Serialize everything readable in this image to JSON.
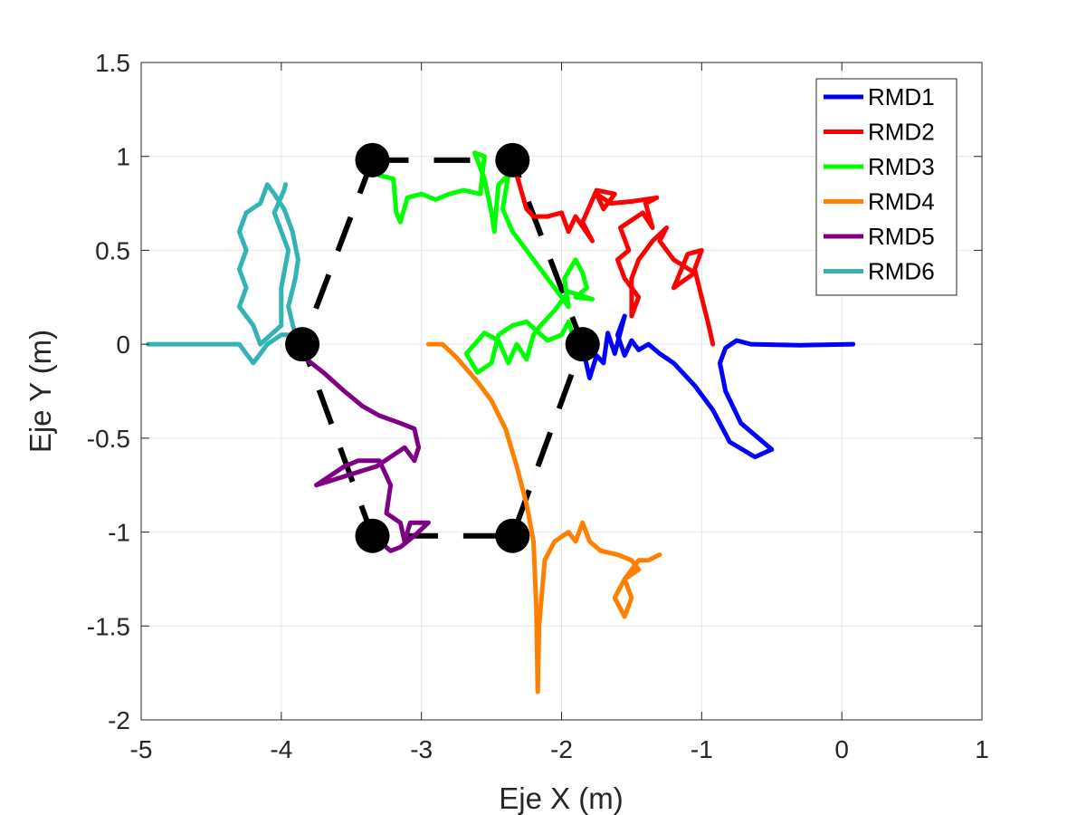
{
  "chart_data": {
    "type": "line",
    "title": "",
    "xlabel": "Eje X (m)",
    "ylabel": "Eje Y (m)",
    "xlim": [
      -5,
      1
    ],
    "ylim": [
      -2,
      1.5
    ],
    "xticks": [
      -5,
      -4,
      -3,
      -2,
      -1,
      0,
      1
    ],
    "yticks": [
      -2,
      -1.5,
      -1,
      -0.5,
      0,
      0.5,
      1,
      1.5
    ],
    "xtick_labels": [
      "-5",
      "-4",
      "-3",
      "-2",
      "-1",
      "0",
      "1"
    ],
    "ytick_labels": [
      "-2",
      "-1.5",
      "-1",
      "-0.5",
      "0",
      "0.5",
      "1",
      "1.5"
    ],
    "grid": true,
    "legend_position": "top-right",
    "formation": {
      "vertices": [
        [
          -3.35,
          0.98
        ],
        [
          -2.35,
          0.98
        ],
        [
          -1.85,
          0.0
        ],
        [
          -2.35,
          -1.02
        ],
        [
          -3.35,
          -1.02
        ],
        [
          -3.85,
          0.0
        ]
      ],
      "color": "#000000",
      "style": "dashed"
    },
    "series": [
      {
        "name": "RMD1",
        "color": "#0000ff",
        "points": [
          [
            0.08,
            0.0
          ],
          [
            -0.3,
            -0.005
          ],
          [
            -0.65,
            0.0
          ],
          [
            -0.75,
            0.02
          ],
          [
            -0.83,
            -0.02
          ],
          [
            -0.87,
            -0.1
          ],
          [
            -0.83,
            -0.25
          ],
          [
            -0.72,
            -0.42
          ],
          [
            -0.5,
            -0.56
          ],
          [
            -0.62,
            -0.6
          ],
          [
            -0.8,
            -0.52
          ],
          [
            -0.92,
            -0.35
          ],
          [
            -1.05,
            -0.22
          ],
          [
            -1.2,
            -0.1
          ],
          [
            -1.3,
            -0.05
          ],
          [
            -1.38,
            0.0
          ],
          [
            -1.45,
            -0.03
          ],
          [
            -1.5,
            0.02
          ],
          [
            -1.55,
            -0.06
          ],
          [
            -1.6,
            0.05
          ],
          [
            -1.55,
            0.15
          ],
          [
            -1.62,
            -0.05
          ],
          [
            -1.67,
            0.06
          ],
          [
            -1.7,
            -0.1
          ],
          [
            -1.75,
            -0.06
          ],
          [
            -1.8,
            -0.18
          ],
          [
            -1.83,
            -0.08
          ],
          [
            -1.85,
            0.0
          ]
        ]
      },
      {
        "name": "RMD2",
        "color": "#ff0000",
        "points": [
          [
            -0.92,
            0.0
          ],
          [
            -0.95,
            0.1
          ],
          [
            -1.0,
            0.25
          ],
          [
            -1.05,
            0.4
          ],
          [
            -1.0,
            0.5
          ],
          [
            -1.1,
            0.48
          ],
          [
            -1.2,
            0.3
          ],
          [
            -1.05,
            0.38
          ],
          [
            -1.2,
            0.45
          ],
          [
            -1.3,
            0.55
          ],
          [
            -1.25,
            0.62
          ],
          [
            -1.35,
            0.55
          ],
          [
            -1.45,
            0.45
          ],
          [
            -1.5,
            0.35
          ],
          [
            -1.5,
            0.15
          ],
          [
            -1.45,
            0.25
          ],
          [
            -1.55,
            0.35
          ],
          [
            -1.6,
            0.45
          ],
          [
            -1.52,
            0.5
          ],
          [
            -1.58,
            0.62
          ],
          [
            -1.42,
            0.7
          ],
          [
            -1.35,
            0.62
          ],
          [
            -1.4,
            0.75
          ],
          [
            -1.32,
            0.78
          ],
          [
            -1.5,
            0.76
          ],
          [
            -1.65,
            0.75
          ],
          [
            -1.75,
            0.8
          ],
          [
            -1.7,
            0.72
          ],
          [
            -1.62,
            0.8
          ],
          [
            -1.75,
            0.82
          ],
          [
            -1.85,
            0.65
          ],
          [
            -1.78,
            0.55
          ],
          [
            -1.9,
            0.68
          ],
          [
            -1.95,
            0.6
          ],
          [
            -2.0,
            0.7
          ],
          [
            -2.1,
            0.68
          ],
          [
            -2.2,
            0.68
          ],
          [
            -2.25,
            0.72
          ],
          [
            -2.3,
            0.85
          ],
          [
            -2.35,
            0.98
          ]
        ]
      },
      {
        "name": "RMD3",
        "color": "#00ff00",
        "points": [
          [
            -3.3,
            0.9
          ],
          [
            -3.2,
            0.88
          ],
          [
            -3.18,
            0.7
          ],
          [
            -3.15,
            0.65
          ],
          [
            -3.1,
            0.78
          ],
          [
            -3.0,
            0.8
          ],
          [
            -2.9,
            0.77
          ],
          [
            -2.8,
            0.8
          ],
          [
            -2.7,
            0.82
          ],
          [
            -2.58,
            0.8
          ],
          [
            -2.55,
            1.0
          ],
          [
            -2.62,
            1.02
          ],
          [
            -2.55,
            0.88
          ],
          [
            -2.5,
            0.7
          ],
          [
            -2.48,
            0.6
          ],
          [
            -2.45,
            0.85
          ],
          [
            -2.38,
            0.9
          ],
          [
            -2.42,
            0.72
          ],
          [
            -2.35,
            0.6
          ],
          [
            -2.25,
            0.5
          ],
          [
            -2.15,
            0.4
          ],
          [
            -2.05,
            0.3
          ],
          [
            -1.95,
            0.2
          ],
          [
            -1.98,
            0.35
          ],
          [
            -1.9,
            0.45
          ],
          [
            -1.85,
            0.38
          ],
          [
            -1.82,
            0.3
          ],
          [
            -1.9,
            0.25
          ],
          [
            -1.78,
            0.24
          ],
          [
            -1.95,
            0.28
          ],
          [
            -2.05,
            0.18
          ],
          [
            -2.15,
            0.1
          ],
          [
            -2.2,
            0.05
          ],
          [
            -2.25,
            -0.08
          ],
          [
            -2.32,
            0.0
          ],
          [
            -2.38,
            -0.1
          ],
          [
            -2.45,
            0.02
          ],
          [
            -2.55,
            0.06
          ],
          [
            -2.62,
            0.0
          ],
          [
            -2.68,
            -0.05
          ],
          [
            -2.6,
            -0.15
          ],
          [
            -2.5,
            -0.1
          ],
          [
            -2.45,
            0.05
          ],
          [
            -2.35,
            0.1
          ],
          [
            -2.25,
            0.12
          ],
          [
            -2.1,
            0.02
          ],
          [
            -2.0,
            0.05
          ],
          [
            -1.95,
            0.12
          ],
          [
            -1.9,
            0.0
          ],
          [
            -1.85,
            0.0
          ]
        ]
      },
      {
        "name": "RMD4",
        "color": "#ff8000",
        "points": [
          [
            -2.95,
            0.0
          ],
          [
            -2.85,
            0.0
          ],
          [
            -2.75,
            -0.07
          ],
          [
            -2.6,
            -0.2
          ],
          [
            -2.5,
            -0.3
          ],
          [
            -2.4,
            -0.45
          ],
          [
            -2.32,
            -0.65
          ],
          [
            -2.25,
            -0.85
          ],
          [
            -2.2,
            -1.05
          ],
          [
            -2.18,
            -1.4
          ],
          [
            -2.17,
            -1.85
          ],
          [
            -2.16,
            -1.5
          ],
          [
            -2.12,
            -1.15
          ],
          [
            -2.05,
            -1.05
          ],
          [
            -1.95,
            -1.0
          ],
          [
            -1.9,
            -1.05
          ],
          [
            -1.85,
            -0.95
          ],
          [
            -1.8,
            -1.05
          ],
          [
            -1.72,
            -1.1
          ],
          [
            -1.6,
            -1.12
          ],
          [
            -1.5,
            -1.15
          ],
          [
            -1.45,
            -1.2
          ],
          [
            -1.55,
            -1.25
          ],
          [
            -1.62,
            -1.35
          ],
          [
            -1.55,
            -1.45
          ],
          [
            -1.5,
            -1.35
          ],
          [
            -1.55,
            -1.25
          ],
          [
            -1.45,
            -1.15
          ],
          [
            -1.38,
            -1.15
          ],
          [
            -1.3,
            -1.12
          ]
        ]
      },
      {
        "name": "RMD5",
        "color": "#7e0085",
        "points": [
          [
            -3.88,
            -0.02
          ],
          [
            -3.82,
            -0.08
          ],
          [
            -3.7,
            -0.15
          ],
          [
            -3.55,
            -0.25
          ],
          [
            -3.42,
            -0.33
          ],
          [
            -3.3,
            -0.38
          ],
          [
            -3.15,
            -0.42
          ],
          [
            -3.05,
            -0.45
          ],
          [
            -3.02,
            -0.55
          ],
          [
            -3.05,
            -0.62
          ],
          [
            -3.12,
            -0.55
          ],
          [
            -3.22,
            -0.6
          ],
          [
            -3.32,
            -0.65
          ],
          [
            -3.45,
            -0.68
          ],
          [
            -3.62,
            -0.72
          ],
          [
            -3.75,
            -0.75
          ],
          [
            -3.55,
            -0.65
          ],
          [
            -3.45,
            -0.62
          ],
          [
            -3.3,
            -0.62
          ],
          [
            -3.22,
            -0.75
          ],
          [
            -3.25,
            -0.9
          ],
          [
            -3.15,
            -0.95
          ],
          [
            -3.12,
            -1.05
          ],
          [
            -3.08,
            -0.95
          ],
          [
            -2.95,
            -0.95
          ],
          [
            -3.05,
            -1.02
          ],
          [
            -3.15,
            -1.08
          ],
          [
            -3.22,
            -1.1
          ],
          [
            -3.3,
            -1.05
          ],
          [
            -3.35,
            -1.02
          ]
        ]
      },
      {
        "name": "RMD6",
        "color": "#33b3b3",
        "points": [
          [
            -4.95,
            0.0
          ],
          [
            -4.6,
            0.0
          ],
          [
            -4.3,
            0.0
          ],
          [
            -4.25,
            -0.05
          ],
          [
            -4.2,
            -0.1
          ],
          [
            -4.1,
            0.0
          ],
          [
            -4.0,
            0.05
          ],
          [
            -3.9,
            0.05
          ],
          [
            -3.95,
            0.2
          ],
          [
            -3.9,
            0.35
          ],
          [
            -3.88,
            0.45
          ],
          [
            -3.92,
            0.6
          ],
          [
            -3.98,
            0.72
          ],
          [
            -4.05,
            0.8
          ],
          [
            -4.1,
            0.85
          ],
          [
            -4.15,
            0.75
          ],
          [
            -4.25,
            0.7
          ],
          [
            -4.3,
            0.6
          ],
          [
            -4.25,
            0.5
          ],
          [
            -4.3,
            0.4
          ],
          [
            -4.25,
            0.3
          ],
          [
            -4.3,
            0.2
          ],
          [
            -4.2,
            0.1
          ],
          [
            -4.15,
            0.0
          ],
          [
            -4.0,
            0.1
          ],
          [
            -4.0,
            0.3
          ],
          [
            -3.95,
            0.5
          ],
          [
            -4.05,
            0.7
          ],
          [
            -3.98,
            0.82
          ],
          [
            -3.97,
            0.85
          ]
        ]
      }
    ]
  }
}
